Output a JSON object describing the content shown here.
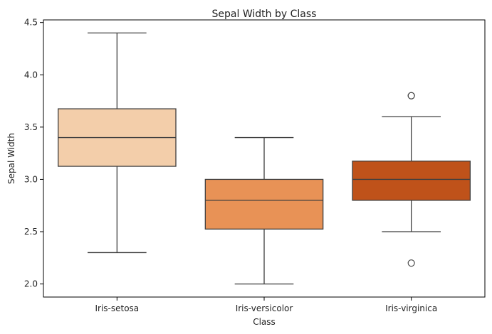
{
  "chart_data": {
    "type": "box",
    "title": "Sepal Width by Class",
    "xlabel": "Class",
    "ylabel": "Sepal Width",
    "ylim": [
      1.875,
      4.525
    ],
    "yticks": [
      2.0,
      2.5,
      3.0,
      3.5,
      4.0,
      4.5
    ],
    "ytick_labels": [
      "2.0",
      "2.5",
      "3.0",
      "3.5",
      "4.0",
      "4.5"
    ],
    "grid": false,
    "legend": "none",
    "categories": [
      "Iris-setosa",
      "Iris-versicolor",
      "Iris-virginica"
    ],
    "boxes": [
      {
        "category": "Iris-setosa",
        "whisker_low": 2.3,
        "q1": 3.125,
        "median": 3.4,
        "q3": 3.675,
        "whisker_high": 4.4,
        "outliers": [],
        "color": "#f3ceaa"
      },
      {
        "category": "Iris-versicolor",
        "whisker_low": 2.0,
        "q1": 2.525,
        "median": 2.8,
        "q3": 3.0,
        "whisker_high": 3.4,
        "outliers": [],
        "color": "#e89256"
      },
      {
        "category": "Iris-virginica",
        "whisker_low": 2.5,
        "q1": 2.8,
        "median": 3.0,
        "q3": 3.175,
        "whisker_high": 3.6,
        "outliers": [
          3.8,
          3.8,
          2.2
        ],
        "color": "#bf521a"
      }
    ],
    "line_color": "#3f3f3f"
  }
}
